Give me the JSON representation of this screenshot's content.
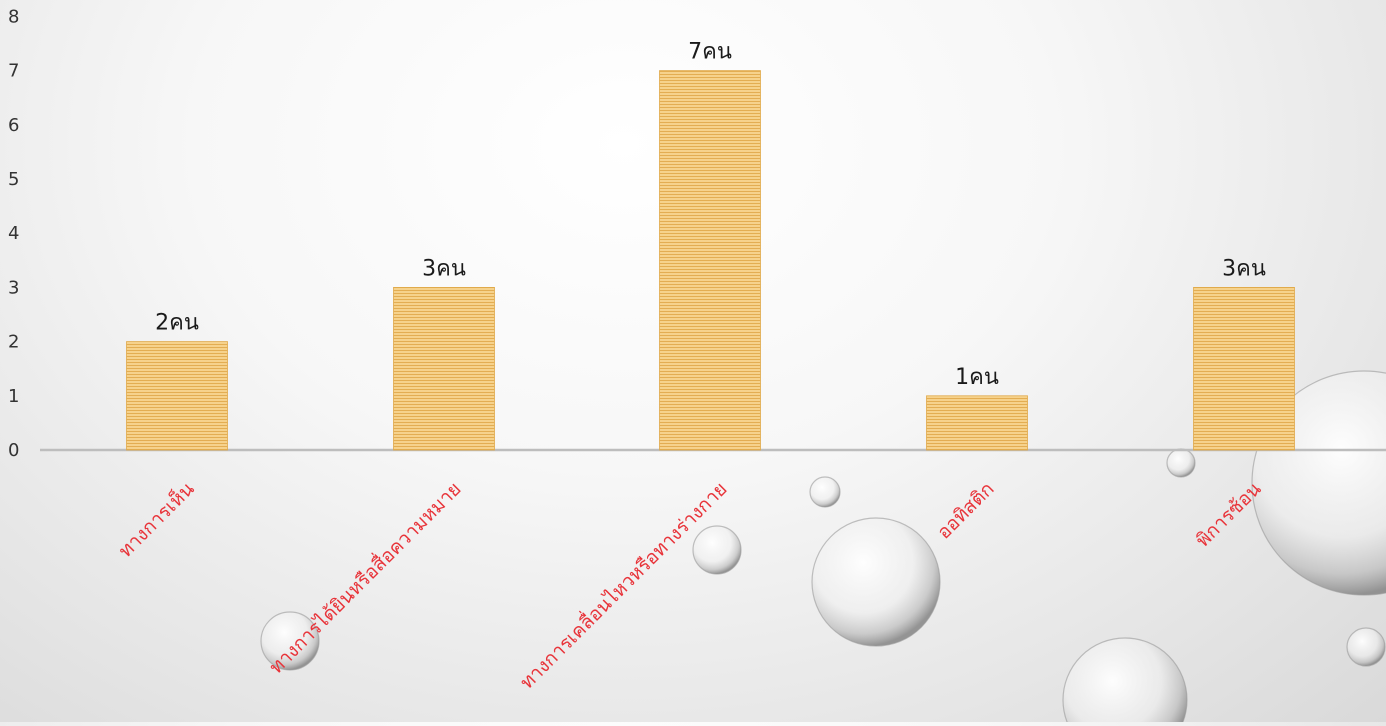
{
  "chart_data": {
    "type": "bar",
    "categories": [
      "ทางการเห็น",
      "ทางการได้ยินหรือสื่อความหมาย",
      "ทางการเคลื่อนไหวหรือทางร่างกาย",
      "ออทิสติก",
      "พิการซ้อน"
    ],
    "values": [
      2,
      3,
      7,
      1,
      3
    ],
    "data_labels": [
      "2คน",
      "3คน",
      "7คน",
      "1คน",
      "3คน"
    ],
    "y_ticks": [
      "0",
      "1",
      "2",
      "3",
      "4",
      "5",
      "6",
      "7",
      "8"
    ],
    "ylim": [
      0,
      8
    ],
    "grid": false,
    "legend": "none",
    "colors": {
      "bar": "#f2c77a",
      "bar_stripe": "#e0a94a",
      "category_label": "#e8343a",
      "axis": "#bdbdbd",
      "tick_label": "#333333"
    }
  }
}
